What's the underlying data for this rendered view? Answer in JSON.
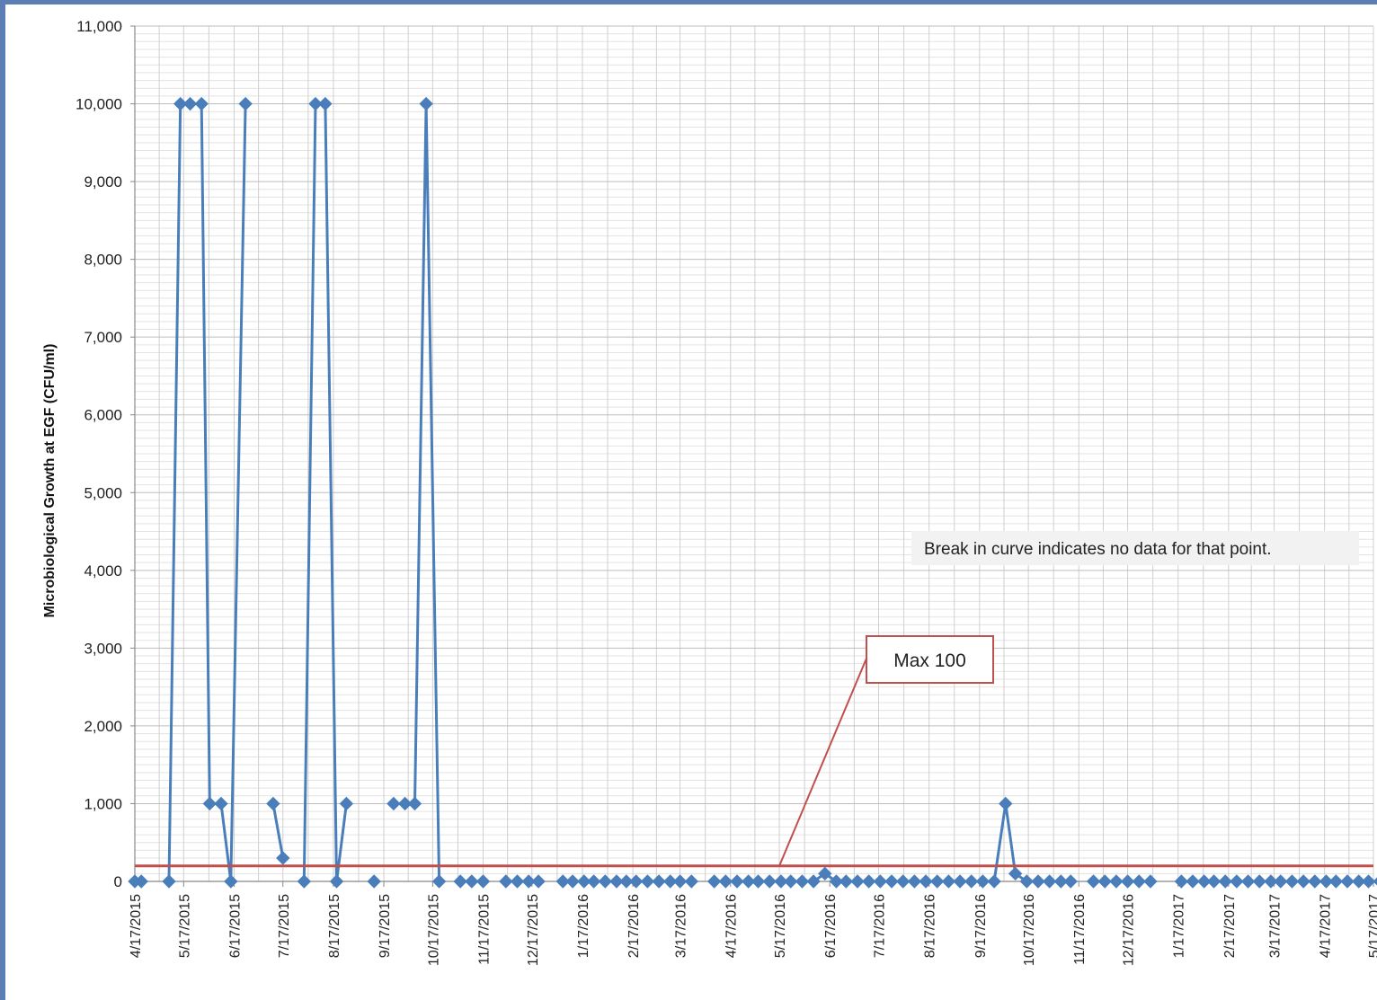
{
  "colors": {
    "series": "#4a7ebb",
    "limit_line": "#c0504d",
    "callout_border": "#c0504d",
    "grid": "#cfcfcf",
    "window_border": "#5b7fb5"
  },
  "chart_data": {
    "type": "line",
    "xlabel": "",
    "ylabel": "Microbiological  Growth at EGF (CFU/ml)",
    "ylim": [
      0,
      11000
    ],
    "yticks": [
      "0",
      "1,000",
      "2,000",
      "3,000",
      "4,000",
      "5,000",
      "6,000",
      "7,000",
      "8,000",
      "9,000",
      "10,000",
      "11,000"
    ],
    "xlim": [
      "2015-04-17",
      "2017-05-17"
    ],
    "xticks": [
      "4/17/2015",
      "5/17/2015",
      "6/17/2015",
      "7/17/2015",
      "8/17/2015",
      "9/17/2015",
      "10/17/2015",
      "11/17/2015",
      "12/17/2015",
      "1/17/2016",
      "2/17/2016",
      "3/17/2016",
      "4/17/2016",
      "5/17/2016",
      "6/17/2016",
      "7/17/2016",
      "8/17/2016",
      "9/17/2016",
      "10/17/2016",
      "11/17/2016",
      "12/17/2016",
      "1/17/2017",
      "2/17/2017",
      "3/17/2017",
      "4/17/2017",
      "5/17/2017"
    ],
    "grid": true,
    "legend": "none",
    "series": [
      {
        "marker": "diamond",
        "segments": [
          [
            [
              "2015-04-17",
              0
            ],
            [
              "2015-04-21",
              0
            ]
          ],
          [
            [
              "2015-05-08",
              0
            ],
            [
              "2015-05-15",
              10000
            ],
            [
              "2015-05-21",
              10000
            ],
            [
              "2015-05-28",
              10000
            ],
            [
              "2015-06-02",
              1000
            ],
            [
              "2015-06-09",
              1000
            ],
            [
              "2015-06-15",
              0
            ],
            [
              "2015-06-24",
              10000
            ]
          ],
          [
            [
              "2015-07-11",
              1000
            ],
            [
              "2015-07-17",
              300
            ]
          ],
          [
            [
              "2015-07-30",
              0
            ],
            [
              "2015-08-06",
              10000
            ],
            [
              "2015-08-12",
              10000
            ],
            [
              "2015-08-19",
              0
            ],
            [
              "2015-08-25",
              1000
            ]
          ],
          [
            [
              "2015-09-11",
              0
            ]
          ],
          [
            [
              "2015-09-23",
              1000
            ],
            [
              "2015-09-30",
              1000
            ],
            [
              "2015-10-06",
              1000
            ],
            [
              "2015-10-13",
              10000
            ],
            [
              "2015-10-21",
              0
            ]
          ],
          [
            [
              "2015-11-03",
              0
            ],
            [
              "2015-11-10",
              0
            ],
            [
              "2015-11-17",
              0
            ]
          ],
          [
            [
              "2015-12-01",
              0
            ],
            [
              "2015-12-08",
              0
            ],
            [
              "2015-12-15",
              0
            ],
            [
              "2015-12-21",
              0
            ]
          ],
          [
            [
              "2016-01-05",
              0
            ],
            [
              "2016-01-11",
              0
            ],
            [
              "2016-01-18",
              0
            ],
            [
              "2016-01-24",
              0
            ],
            [
              "2016-01-31",
              0
            ],
            [
              "2016-02-07",
              0
            ],
            [
              "2016-02-13",
              0
            ],
            [
              "2016-02-19",
              0
            ],
            [
              "2016-02-26",
              0
            ],
            [
              "2016-03-04",
              0
            ],
            [
              "2016-03-11",
              0
            ],
            [
              "2016-03-17",
              0
            ],
            [
              "2016-03-24",
              0
            ]
          ],
          [
            [
              "2016-04-07",
              0
            ],
            [
              "2016-04-14",
              0
            ],
            [
              "2016-04-21",
              0
            ],
            [
              "2016-04-28",
              0
            ],
            [
              "2016-05-04",
              0
            ],
            [
              "2016-05-11",
              0
            ],
            [
              "2016-05-18",
              0
            ],
            [
              "2016-05-24",
              0
            ],
            [
              "2016-05-31",
              0
            ],
            [
              "2016-06-07",
              0
            ],
            [
              "2016-06-14",
              100
            ],
            [
              "2016-06-21",
              0
            ],
            [
              "2016-06-27",
              0
            ],
            [
              "2016-07-04",
              0
            ],
            [
              "2016-07-11",
              0
            ],
            [
              "2016-07-18",
              0
            ],
            [
              "2016-07-25",
              0
            ],
            [
              "2016-08-01",
              0
            ],
            [
              "2016-08-08",
              0
            ],
            [
              "2016-08-15",
              0
            ],
            [
              "2016-08-22",
              0
            ],
            [
              "2016-08-29",
              0
            ],
            [
              "2016-09-05",
              0
            ],
            [
              "2016-09-12",
              0
            ],
            [
              "2016-09-19",
              0
            ],
            [
              "2016-09-26",
              0
            ],
            [
              "2016-10-03",
              1000
            ],
            [
              "2016-10-09",
              100
            ],
            [
              "2016-10-16",
              0
            ],
            [
              "2016-10-23",
              0
            ],
            [
              "2016-10-30",
              0
            ],
            [
              "2016-11-06",
              0
            ],
            [
              "2016-11-12",
              0
            ]
          ],
          [
            [
              "2016-11-26",
              0
            ],
            [
              "2016-12-03",
              0
            ],
            [
              "2016-12-10",
              0
            ],
            [
              "2016-12-17",
              0
            ],
            [
              "2016-12-24",
              0
            ],
            [
              "2016-12-31",
              0
            ]
          ],
          [
            [
              "2017-01-19",
              0
            ],
            [
              "2017-01-26",
              0
            ],
            [
              "2017-02-02",
              0
            ],
            [
              "2017-02-08",
              0
            ],
            [
              "2017-02-15",
              0
            ],
            [
              "2017-02-22",
              0
            ],
            [
              "2017-03-01",
              0
            ],
            [
              "2017-03-08",
              0
            ],
            [
              "2017-03-15",
              0
            ],
            [
              "2017-03-21",
              0
            ],
            [
              "2017-03-28",
              0
            ],
            [
              "2017-04-04",
              0
            ],
            [
              "2017-04-11",
              0
            ],
            [
              "2017-04-18",
              0
            ],
            [
              "2017-04-24",
              0
            ],
            [
              "2017-05-01",
              0
            ],
            [
              "2017-05-08",
              0
            ],
            [
              "2017-05-14",
              0
            ],
            [
              "2017-05-21",
              0
            ]
          ]
        ]
      }
    ],
    "limit_line": {
      "value": 200
    },
    "annotations": {
      "note": "Break in curve indicates no data for that point.",
      "callout": {
        "text": "Max 100",
        "points_to": [
          "2016-05-17",
          200
        ]
      }
    }
  }
}
